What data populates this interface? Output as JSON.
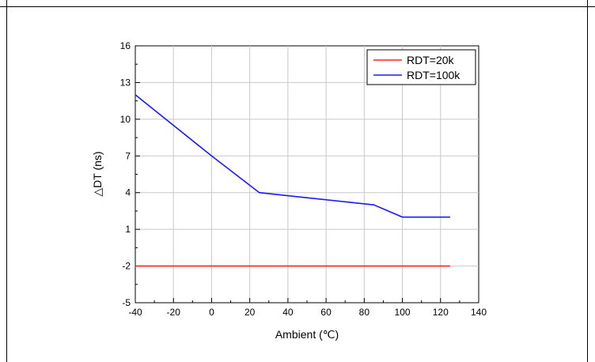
{
  "chart_data": {
    "type": "line",
    "xlabel": "Ambient (℃)",
    "ylabel": "△DT (ns)",
    "xlim": [
      -40,
      140
    ],
    "ylim": [
      -5,
      16
    ],
    "xticks": [
      -40,
      -20,
      0,
      20,
      40,
      60,
      80,
      100,
      120,
      140
    ],
    "yticks": [
      -5,
      -2,
      1,
      4,
      7,
      10,
      13,
      16
    ],
    "grid": true,
    "legend_position": "top-right",
    "series": [
      {
        "name": "RDT=20k",
        "color": "#ff2020",
        "x": [
          -40,
          125
        ],
        "y": [
          -2,
          -2
        ]
      },
      {
        "name": "RDT=100k",
        "color": "#1a1aff",
        "x": [
          -40,
          0,
          25,
          85,
          100,
          125
        ],
        "y": [
          12,
          7,
          4,
          3,
          2,
          2
        ]
      }
    ]
  }
}
